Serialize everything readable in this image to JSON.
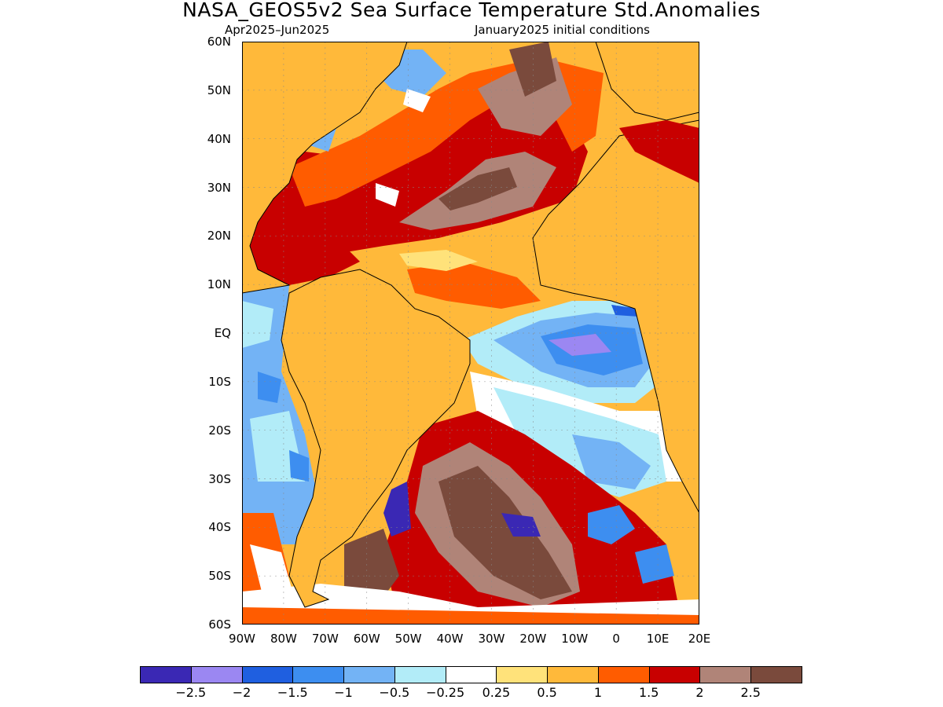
{
  "title": "NASA_GEOS5v2 Sea Surface Temperature Std.Anomalies",
  "subtitle_left": "Apr2025–Jun2025",
  "subtitle_right": "January2025 initial conditions",
  "lat_labels": [
    "60N",
    "50N",
    "40N",
    "30N",
    "20N",
    "10N",
    "EQ",
    "10S",
    "20S",
    "30S",
    "40S",
    "50S",
    "60S"
  ],
  "lon_labels": [
    "90W",
    "80W",
    "70W",
    "60W",
    "50W",
    "40W",
    "30W",
    "20W",
    "10W",
    "0",
    "10E",
    "20E"
  ],
  "colorbar": {
    "colors": [
      "#3a28b4",
      "#9b87f2",
      "#1f5fe0",
      "#3d8ef0",
      "#73b3f5",
      "#b2ecf8",
      "#ffffff",
      "#ffe27a",
      "#ffb93a",
      "#ff5c00",
      "#c80000",
      "#b08478",
      "#7a4a3c"
    ],
    "labels": [
      "−2.5",
      "−2",
      "−1.5",
      "−1",
      "−0.5",
      "−0.25",
      "0.25",
      "0.5",
      "1",
      "1.5",
      "2",
      "2.5"
    ]
  },
  "map": {
    "lat_range": [
      -60,
      60
    ],
    "lon_range": [
      -90,
      20
    ],
    "land_color": "#ffb93a",
    "ocean_base_color": "#ffb93a"
  }
}
